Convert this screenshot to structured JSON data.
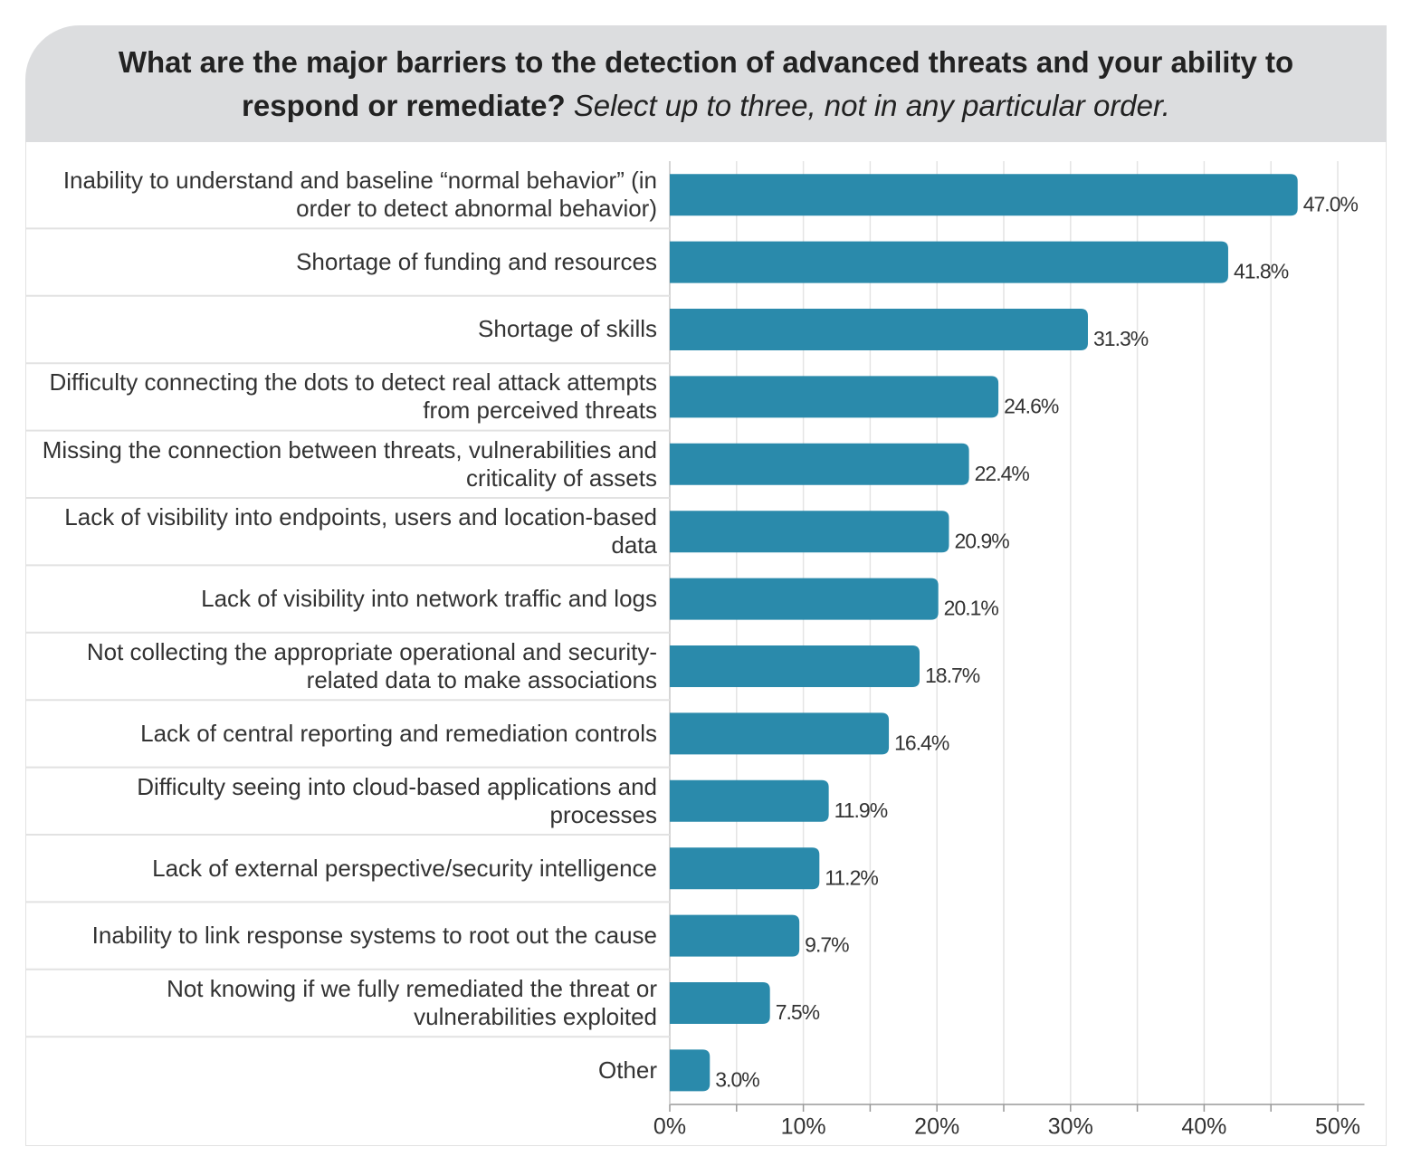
{
  "chart_data": {
    "type": "hbar",
    "title": "What are the major barriers to the detection of advanced threats and your ability to respond or remediate?",
    "subtitle": "Select up to three, not in any particular order.",
    "categories": [
      "Inability to understand and baseline “normal behavior” (in order to detect abnormal behavior)",
      "Shortage of funding and resources",
      "Shortage of skills",
      "Difficulty connecting the dots to detect real attack attempts from perceived threats",
      "Missing the connection between threats, vulnerabilities and criticality of assets",
      "Lack of visibility into endpoints, users and location-based data",
      "Lack of visibility into network traffic and logs",
      "Not collecting the appropriate operational and security-related data to make associations",
      "Lack of central reporting and remediation controls",
      "Difficulty seeing into cloud-based applications and processes",
      "Lack of external perspective/security intelligence",
      "Inability to link response systems to root out the cause",
      "Not knowing if we fully remediated the threat or vulnerabilities exploited",
      "Other"
    ],
    "values": [
      47.0,
      41.8,
      31.3,
      24.6,
      22.4,
      20.9,
      20.1,
      18.7,
      16.4,
      11.9,
      11.2,
      9.7,
      7.5,
      3.0
    ],
    "value_labels": [
      "47.0%",
      "41.8%",
      "31.3%",
      "24.6%",
      "22.4%",
      "20.9%",
      "20.1%",
      "18.7%",
      "16.4%",
      "11.9%",
      "11.2%",
      "9.7%",
      "7.5%",
      "3.0%"
    ],
    "color": "#2a8aab",
    "xlim": [
      0,
      52
    ],
    "xticks": [
      {
        "value": 0,
        "label": "0%"
      },
      {
        "value": 10,
        "label": "10%"
      },
      {
        "value": 20,
        "label": "20%"
      },
      {
        "value": 30,
        "label": "30%"
      },
      {
        "value": 40,
        "label": "40%"
      },
      {
        "value": 50,
        "label": "50%"
      }
    ],
    "minor_xticks": [
      5,
      15,
      25,
      35,
      45
    ],
    "grid": true
  }
}
